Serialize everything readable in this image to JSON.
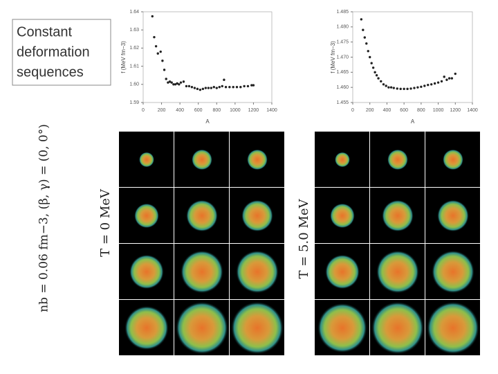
{
  "box_text": [
    "Constant",
    "deformation",
    "sequences"
  ],
  "left_label": "nb = 0.06 fm−3, (β, γ) = (0, 0°)",
  "panel_labels": [
    "T = 0 MeV",
    "T = 5.0 MeV"
  ],
  "chart_data": [
    {
      "type": "scatter",
      "x_label": "A",
      "y_label": "f (MeV fm−3)",
      "color": "#222222",
      "x": [
        100,
        120,
        140,
        160,
        190,
        210,
        230,
        250,
        270,
        290,
        310,
        330,
        350,
        370,
        390,
        410,
        440,
        470,
        500,
        530,
        560,
        590,
        620,
        650,
        680,
        710,
        740,
        770,
        800,
        830,
        860,
        880,
        900,
        940,
        980,
        1020,
        1060,
        1100,
        1140,
        1180,
        1200
      ],
      "values": [
        1.6375,
        1.626,
        1.621,
        1.617,
        1.618,
        1.613,
        1.608,
        1.603,
        1.601,
        1.6015,
        1.601,
        1.6,
        1.6,
        1.6005,
        1.6,
        1.601,
        1.6015,
        1.599,
        1.599,
        1.5985,
        1.598,
        1.5975,
        1.597,
        1.5975,
        1.598,
        1.598,
        1.598,
        1.5985,
        1.598,
        1.5985,
        1.599,
        1.6025,
        1.5985,
        1.5985,
        1.5985,
        1.5985,
        1.5985,
        1.599,
        1.599,
        1.5995,
        1.5995
      ],
      "xlim": [
        0,
        1400
      ],
      "xticks": [
        0,
        200,
        400,
        600,
        800,
        1000,
        1200,
        1400
      ],
      "ylim": [
        1.59,
        1.64
      ],
      "yticks": [
        1.59,
        {
          "value": 1.6,
          "label": "1.60"
        },
        1.61,
        1.62,
        1.63,
        1.64
      ]
    },
    {
      "type": "scatter",
      "x_label": "A",
      "y_label": "f (MeV fm−3)",
      "color": "#222222",
      "x": [
        100,
        120,
        140,
        160,
        180,
        200,
        220,
        240,
        260,
        280,
        300,
        330,
        360,
        390,
        420,
        450,
        480,
        520,
        560,
        600,
        640,
        680,
        720,
        760,
        800,
        840,
        880,
        920,
        960,
        1000,
        1040,
        1070,
        1100,
        1130,
        1160,
        1200
      ],
      "values": [
        1.4825,
        1.479,
        1.4765,
        1.4745,
        1.472,
        1.47,
        1.468,
        1.4665,
        1.465,
        1.464,
        1.463,
        1.462,
        1.461,
        1.4605,
        1.46,
        1.46,
        1.4598,
        1.4596,
        1.4595,
        1.4595,
        1.4595,
        1.4596,
        1.4598,
        1.46,
        1.4602,
        1.4605,
        1.4608,
        1.461,
        1.4613,
        1.4616,
        1.462,
        1.4635,
        1.4625,
        1.463,
        1.463,
        1.4645
      ],
      "xlim": [
        0,
        1400
      ],
      "xticks": [
        0,
        200,
        400,
        600,
        800,
        1000,
        1200,
        1400
      ],
      "ylim": [
        1.455,
        1.485
      ],
      "yticks": [
        1.455,
        {
          "value": 1.46,
          "label": "1.460"
        },
        1.465,
        {
          "value": 1.47,
          "label": "1.470"
        },
        1.475,
        {
          "value": 1.48,
          "label": "1.480"
        },
        1.485
      ]
    }
  ]
}
